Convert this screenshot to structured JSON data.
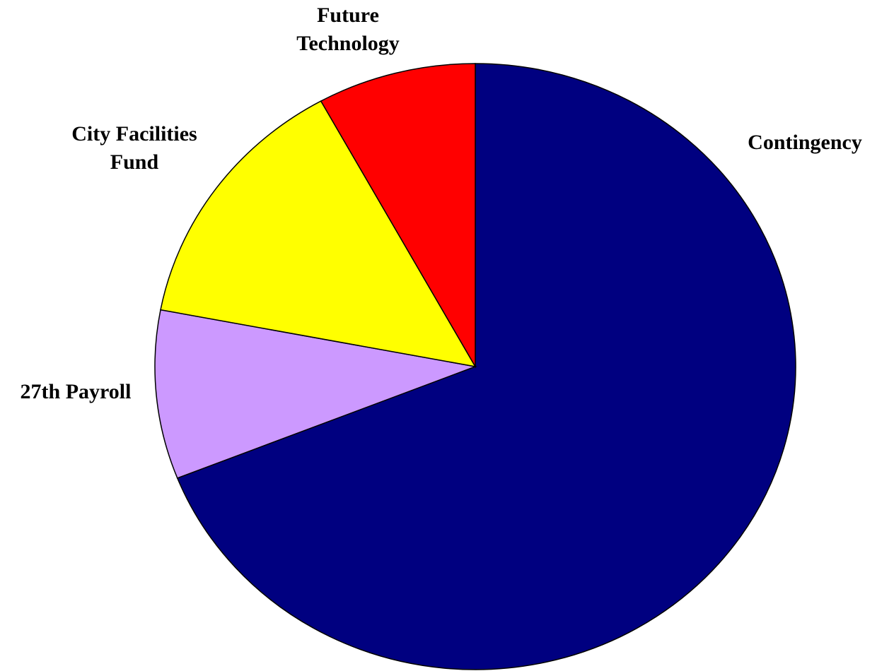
{
  "chart_data": {
    "type": "pie",
    "categories": [
      "Contingency",
      "27th Payroll",
      "City Facilities Fund",
      "Future Technology"
    ],
    "values": [
      69,
      9,
      14,
      8
    ],
    "colors": [
      "#000080",
      "#cc99ff",
      "#ffff00",
      "#ff0000"
    ]
  }
}
